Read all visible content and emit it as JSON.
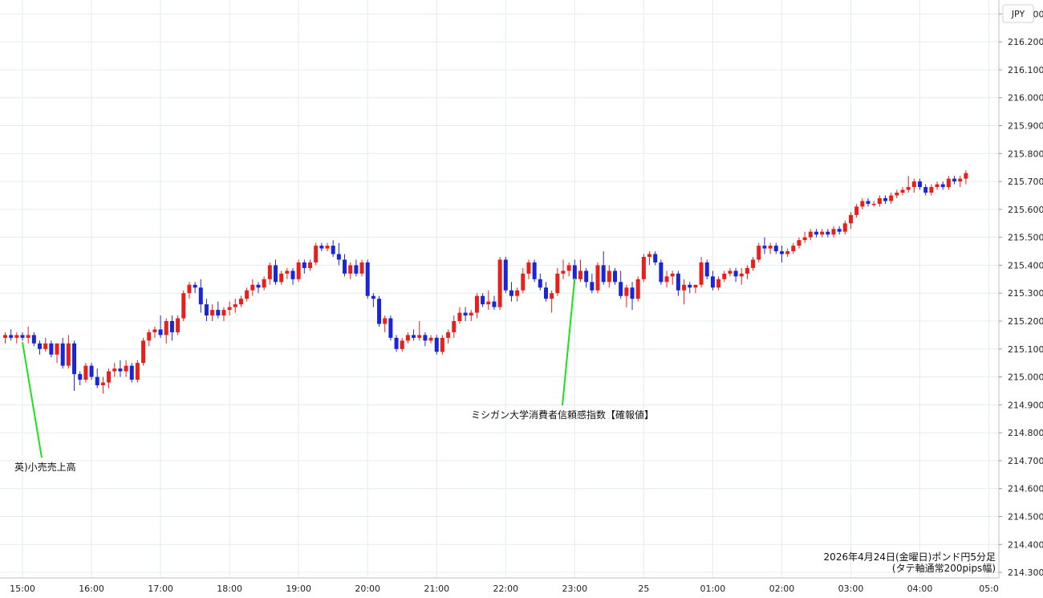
{
  "chart_data": {
    "type": "candlestick",
    "currency_label": "JPY",
    "y_ticks": [
      214.3,
      214.4,
      214.5,
      214.6,
      214.7,
      214.8,
      214.9,
      215.0,
      215.1,
      215.2,
      215.3,
      215.4,
      215.5,
      215.6,
      215.7,
      215.8,
      215.9,
      216.0,
      216.1,
      216.2,
      216.3
    ],
    "y_tick_labels": [
      "214.300",
      "214.400",
      "214.500",
      "214.600",
      "214.700",
      "214.800",
      "214.900",
      "215.000",
      "215.100",
      "215.200",
      "215.300",
      "215.400",
      "215.500",
      "215.600",
      "215.700",
      "215.800",
      "215.900",
      "216.000",
      "216.100",
      "216.200",
      "216.300"
    ],
    "ylim": [
      214.28,
      216.35
    ],
    "x_ticks": [
      {
        "index": 3,
        "label": "15:00"
      },
      {
        "index": 15,
        "label": "16:00"
      },
      {
        "index": 27,
        "label": "17:00"
      },
      {
        "index": 39,
        "label": "18:00"
      },
      {
        "index": 51,
        "label": "19:00"
      },
      {
        "index": 63,
        "label": "20:00"
      },
      {
        "index": 75,
        "label": "21:00"
      },
      {
        "index": 87,
        "label": "22:00"
      },
      {
        "index": 99,
        "label": "23:00"
      },
      {
        "index": 111,
        "label": "25"
      },
      {
        "index": 123,
        "label": "01:00"
      },
      {
        "index": 135,
        "label": "02:00"
      },
      {
        "index": 147,
        "label": "03:00"
      },
      {
        "index": 159,
        "label": "04:00"
      },
      {
        "index": 171,
        "label": "05:0"
      }
    ],
    "grid": true,
    "up_color": "#e8201c",
    "down_color": "#1a26d6",
    "annotations": [
      {
        "text": "英)小売売上高",
        "index": 3,
        "price": 215.13
      },
      {
        "text": "ミシガン大学消費者信頼感指数【確報値】",
        "index": 99,
        "price": 215.36
      }
    ],
    "footnote_line1": "2026年4月24日(金曜日)ポンド円5分足",
    "footnote_line2": "(タテ軸通常200pips幅)",
    "candles": [
      [
        215.14,
        215.16,
        215.12,
        215.15
      ],
      [
        215.15,
        215.17,
        215.13,
        215.14
      ],
      [
        215.14,
        215.16,
        215.12,
        215.15
      ],
      [
        215.15,
        215.16,
        215.13,
        215.14
      ],
      [
        215.14,
        215.18,
        215.12,
        215.15
      ],
      [
        215.15,
        215.16,
        215.11,
        215.12
      ],
      [
        215.12,
        215.13,
        215.08,
        215.1
      ],
      [
        215.1,
        215.14,
        215.09,
        215.12
      ],
      [
        215.12,
        215.13,
        215.07,
        215.08
      ],
      [
        215.08,
        215.12,
        215.05,
        215.12
      ],
      [
        215.12,
        215.14,
        215.03,
        215.04
      ],
      [
        215.04,
        215.15,
        215.03,
        215.12
      ],
      [
        215.12,
        215.13,
        214.95,
        215.01
      ],
      [
        215.01,
        215.02,
        214.97,
        214.99
      ],
      [
        214.99,
        215.05,
        214.98,
        215.04
      ],
      [
        215.04,
        215.05,
        214.99,
        215.0
      ],
      [
        215.0,
        215.03,
        214.96,
        214.97
      ],
      [
        214.97,
        215.0,
        214.94,
        214.98
      ],
      [
        214.98,
        215.03,
        214.96,
        215.02
      ],
      [
        215.02,
        215.05,
        215.0,
        215.03
      ],
      [
        215.03,
        215.06,
        215.0,
        215.02
      ],
      [
        215.02,
        215.06,
        215.0,
        215.04
      ],
      [
        215.04,
        215.05,
        214.98,
        214.99
      ],
      [
        214.99,
        215.06,
        214.98,
        215.05
      ],
      [
        215.05,
        215.14,
        215.04,
        215.13
      ],
      [
        215.13,
        215.17,
        215.11,
        215.16
      ],
      [
        215.16,
        215.18,
        215.14,
        215.17
      ],
      [
        215.17,
        215.22,
        215.14,
        215.15
      ],
      [
        215.15,
        215.21,
        215.12,
        215.2
      ],
      [
        215.2,
        215.22,
        215.13,
        215.16
      ],
      [
        215.16,
        215.22,
        215.15,
        215.21
      ],
      [
        215.21,
        215.31,
        215.2,
        215.3
      ],
      [
        215.3,
        215.34,
        215.28,
        215.33
      ],
      [
        215.33,
        215.34,
        215.3,
        215.32
      ],
      [
        215.32,
        215.35,
        215.23,
        215.26
      ],
      [
        215.26,
        215.28,
        215.2,
        215.22
      ],
      [
        215.22,
        215.26,
        215.2,
        215.24
      ],
      [
        215.24,
        215.27,
        215.21,
        215.22
      ],
      [
        215.22,
        215.25,
        215.2,
        215.24
      ],
      [
        215.24,
        215.27,
        215.22,
        215.25
      ],
      [
        215.25,
        215.28,
        215.23,
        215.26
      ],
      [
        215.26,
        215.29,
        215.25,
        215.28
      ],
      [
        215.28,
        215.32,
        215.27,
        215.31
      ],
      [
        215.31,
        215.35,
        215.29,
        215.33
      ],
      [
        215.33,
        215.34,
        215.3,
        215.32
      ],
      [
        215.32,
        215.36,
        215.31,
        215.35
      ],
      [
        215.35,
        215.41,
        215.33,
        215.4
      ],
      [
        215.4,
        215.42,
        215.33,
        215.34
      ],
      [
        215.34,
        215.38,
        215.33,
        215.37
      ],
      [
        215.37,
        215.39,
        215.35,
        215.38
      ],
      [
        215.38,
        215.39,
        215.33,
        215.35
      ],
      [
        215.35,
        215.42,
        215.34,
        215.41
      ],
      [
        215.41,
        215.42,
        215.37,
        215.39
      ],
      [
        215.39,
        215.42,
        215.38,
        215.41
      ],
      [
        215.41,
        215.48,
        215.4,
        215.47
      ],
      [
        215.47,
        215.48,
        215.45,
        215.46
      ],
      [
        215.46,
        215.48,
        215.45,
        215.47
      ],
      [
        215.47,
        215.49,
        215.43,
        215.44
      ],
      [
        215.44,
        215.48,
        215.4,
        215.42
      ],
      [
        215.42,
        215.44,
        215.36,
        215.37
      ],
      [
        215.37,
        215.41,
        215.35,
        215.4
      ],
      [
        215.4,
        215.42,
        215.36,
        215.37
      ],
      [
        215.37,
        215.42,
        215.36,
        215.41
      ],
      [
        215.41,
        215.42,
        215.28,
        215.29
      ],
      [
        215.29,
        215.3,
        215.25,
        215.28
      ],
      [
        215.28,
        215.29,
        215.18,
        215.19
      ],
      [
        215.19,
        215.22,
        215.16,
        215.21
      ],
      [
        215.21,
        215.22,
        215.13,
        215.14
      ],
      [
        215.14,
        215.15,
        215.09,
        215.1
      ],
      [
        215.1,
        215.14,
        215.09,
        215.13
      ],
      [
        215.13,
        215.16,
        215.12,
        215.15
      ],
      [
        215.15,
        215.17,
        215.13,
        215.14
      ],
      [
        215.14,
        215.2,
        215.13,
        215.15
      ],
      [
        215.15,
        215.16,
        215.11,
        215.13
      ],
      [
        215.13,
        215.15,
        215.12,
        215.14
      ],
      [
        215.14,
        215.15,
        215.08,
        215.09
      ],
      [
        215.09,
        215.15,
        215.08,
        215.14
      ],
      [
        215.14,
        215.17,
        215.12,
        215.16
      ],
      [
        215.16,
        215.22,
        215.14,
        215.2
      ],
      [
        215.2,
        215.25,
        215.19,
        215.23
      ],
      [
        215.23,
        215.25,
        215.2,
        215.22
      ],
      [
        215.22,
        215.24,
        215.2,
        215.23
      ],
      [
        215.23,
        215.3,
        215.21,
        215.29
      ],
      [
        215.29,
        215.3,
        215.25,
        215.26
      ],
      [
        215.26,
        215.31,
        215.24,
        215.27
      ],
      [
        215.27,
        215.29,
        215.24,
        215.25
      ],
      [
        215.25,
        215.43,
        215.24,
        215.42
      ],
      [
        215.42,
        215.43,
        215.3,
        215.31
      ],
      [
        215.31,
        215.34,
        215.27,
        215.29
      ],
      [
        215.29,
        215.32,
        215.27,
        215.31
      ],
      [
        215.31,
        215.39,
        215.3,
        215.37
      ],
      [
        215.37,
        215.42,
        215.35,
        215.41
      ],
      [
        215.41,
        215.42,
        215.34,
        215.35
      ],
      [
        215.35,
        215.37,
        215.31,
        215.32
      ],
      [
        215.32,
        215.34,
        215.27,
        215.28
      ],
      [
        215.28,
        215.31,
        215.23,
        215.3
      ],
      [
        215.3,
        215.39,
        215.29,
        215.37
      ],
      [
        215.37,
        215.42,
        215.35,
        215.38
      ],
      [
        215.38,
        215.41,
        215.36,
        215.4
      ],
      [
        215.4,
        215.42,
        215.33,
        215.35
      ],
      [
        215.35,
        215.42,
        215.34,
        215.38
      ],
      [
        215.38,
        215.39,
        215.32,
        215.34
      ],
      [
        215.34,
        215.37,
        215.3,
        215.31
      ],
      [
        215.31,
        215.41,
        215.3,
        215.4
      ],
      [
        215.4,
        215.45,
        215.33,
        215.34
      ],
      [
        215.34,
        215.4,
        215.32,
        215.38
      ],
      [
        215.38,
        215.39,
        215.33,
        215.34
      ],
      [
        215.34,
        215.38,
        215.28,
        215.29
      ],
      [
        215.29,
        215.33,
        215.25,
        215.32
      ],
      [
        215.32,
        215.34,
        215.24,
        215.28
      ],
      [
        215.28,
        215.36,
        215.27,
        215.35
      ],
      [
        215.35,
        215.44,
        215.34,
        215.43
      ],
      [
        215.43,
        215.45,
        215.4,
        215.44
      ],
      [
        215.44,
        215.45,
        215.4,
        215.41
      ],
      [
        215.41,
        215.42,
        215.33,
        215.34
      ],
      [
        215.34,
        215.38,
        215.32,
        215.36
      ],
      [
        215.36,
        215.38,
        215.33,
        215.37
      ],
      [
        215.37,
        215.38,
        215.29,
        215.31
      ],
      [
        215.31,
        215.35,
        215.26,
        215.33
      ],
      [
        215.33,
        215.34,
        215.3,
        215.32
      ],
      [
        215.32,
        215.33,
        215.3,
        215.33
      ],
      [
        215.33,
        215.43,
        215.32,
        215.41
      ],
      [
        215.41,
        215.42,
        215.35,
        215.36
      ],
      [
        215.36,
        215.38,
        215.31,
        215.32
      ],
      [
        215.32,
        215.36,
        215.31,
        215.35
      ],
      [
        215.35,
        215.38,
        215.34,
        215.37
      ],
      [
        215.37,
        215.39,
        215.36,
        215.38
      ],
      [
        215.38,
        215.39,
        215.34,
        215.36
      ],
      [
        215.36,
        215.39,
        215.33,
        215.37
      ],
      [
        215.37,
        215.4,
        215.35,
        215.39
      ],
      [
        215.39,
        215.43,
        215.38,
        215.42
      ],
      [
        215.42,
        215.48,
        215.41,
        215.47
      ],
      [
        215.47,
        215.5,
        215.44,
        215.46
      ],
      [
        215.46,
        215.48,
        215.44,
        215.47
      ],
      [
        215.47,
        215.48,
        215.44,
        215.45
      ],
      [
        215.45,
        215.47,
        215.41,
        215.44
      ],
      [
        215.44,
        215.46,
        215.43,
        215.45
      ],
      [
        215.45,
        215.48,
        215.44,
        215.47
      ],
      [
        215.47,
        215.5,
        215.46,
        215.49
      ],
      [
        215.49,
        215.52,
        215.48,
        215.5
      ],
      [
        215.5,
        215.53,
        215.49,
        215.52
      ],
      [
        215.52,
        215.53,
        215.5,
        215.51
      ],
      [
        215.51,
        215.53,
        215.5,
        215.52
      ],
      [
        215.52,
        215.53,
        215.5,
        215.51
      ],
      [
        215.51,
        215.54,
        215.5,
        215.53
      ],
      [
        215.53,
        215.54,
        215.51,
        215.52
      ],
      [
        215.52,
        215.56,
        215.51,
        215.55
      ],
      [
        215.55,
        215.59,
        215.53,
        215.58
      ],
      [
        215.58,
        215.62,
        215.57,
        215.61
      ],
      [
        215.61,
        215.64,
        215.6,
        215.63
      ],
      [
        215.63,
        215.64,
        215.61,
        215.62
      ],
      [
        215.62,
        215.63,
        215.61,
        215.62
      ],
      [
        215.62,
        215.65,
        215.61,
        215.64
      ],
      [
        215.64,
        215.65,
        215.62,
        215.63
      ],
      [
        215.63,
        215.66,
        215.62,
        215.65
      ],
      [
        215.65,
        215.67,
        215.64,
        215.66
      ],
      [
        215.66,
        215.68,
        215.65,
        215.67
      ],
      [
        215.67,
        215.72,
        215.66,
        215.68
      ],
      [
        215.68,
        215.71,
        215.66,
        215.7
      ],
      [
        215.7,
        215.71,
        215.67,
        215.68
      ],
      [
        215.68,
        215.69,
        215.65,
        215.66
      ],
      [
        215.66,
        215.69,
        215.65,
        215.68
      ],
      [
        215.68,
        215.7,
        215.67,
        215.69
      ],
      [
        215.69,
        215.7,
        215.67,
        215.68
      ],
      [
        215.68,
        215.72,
        215.67,
        215.71
      ],
      [
        215.71,
        215.72,
        215.69,
        215.7
      ],
      [
        215.7,
        215.72,
        215.68,
        215.71
      ],
      [
        215.71,
        215.74,
        215.69,
        215.73
      ]
    ]
  }
}
